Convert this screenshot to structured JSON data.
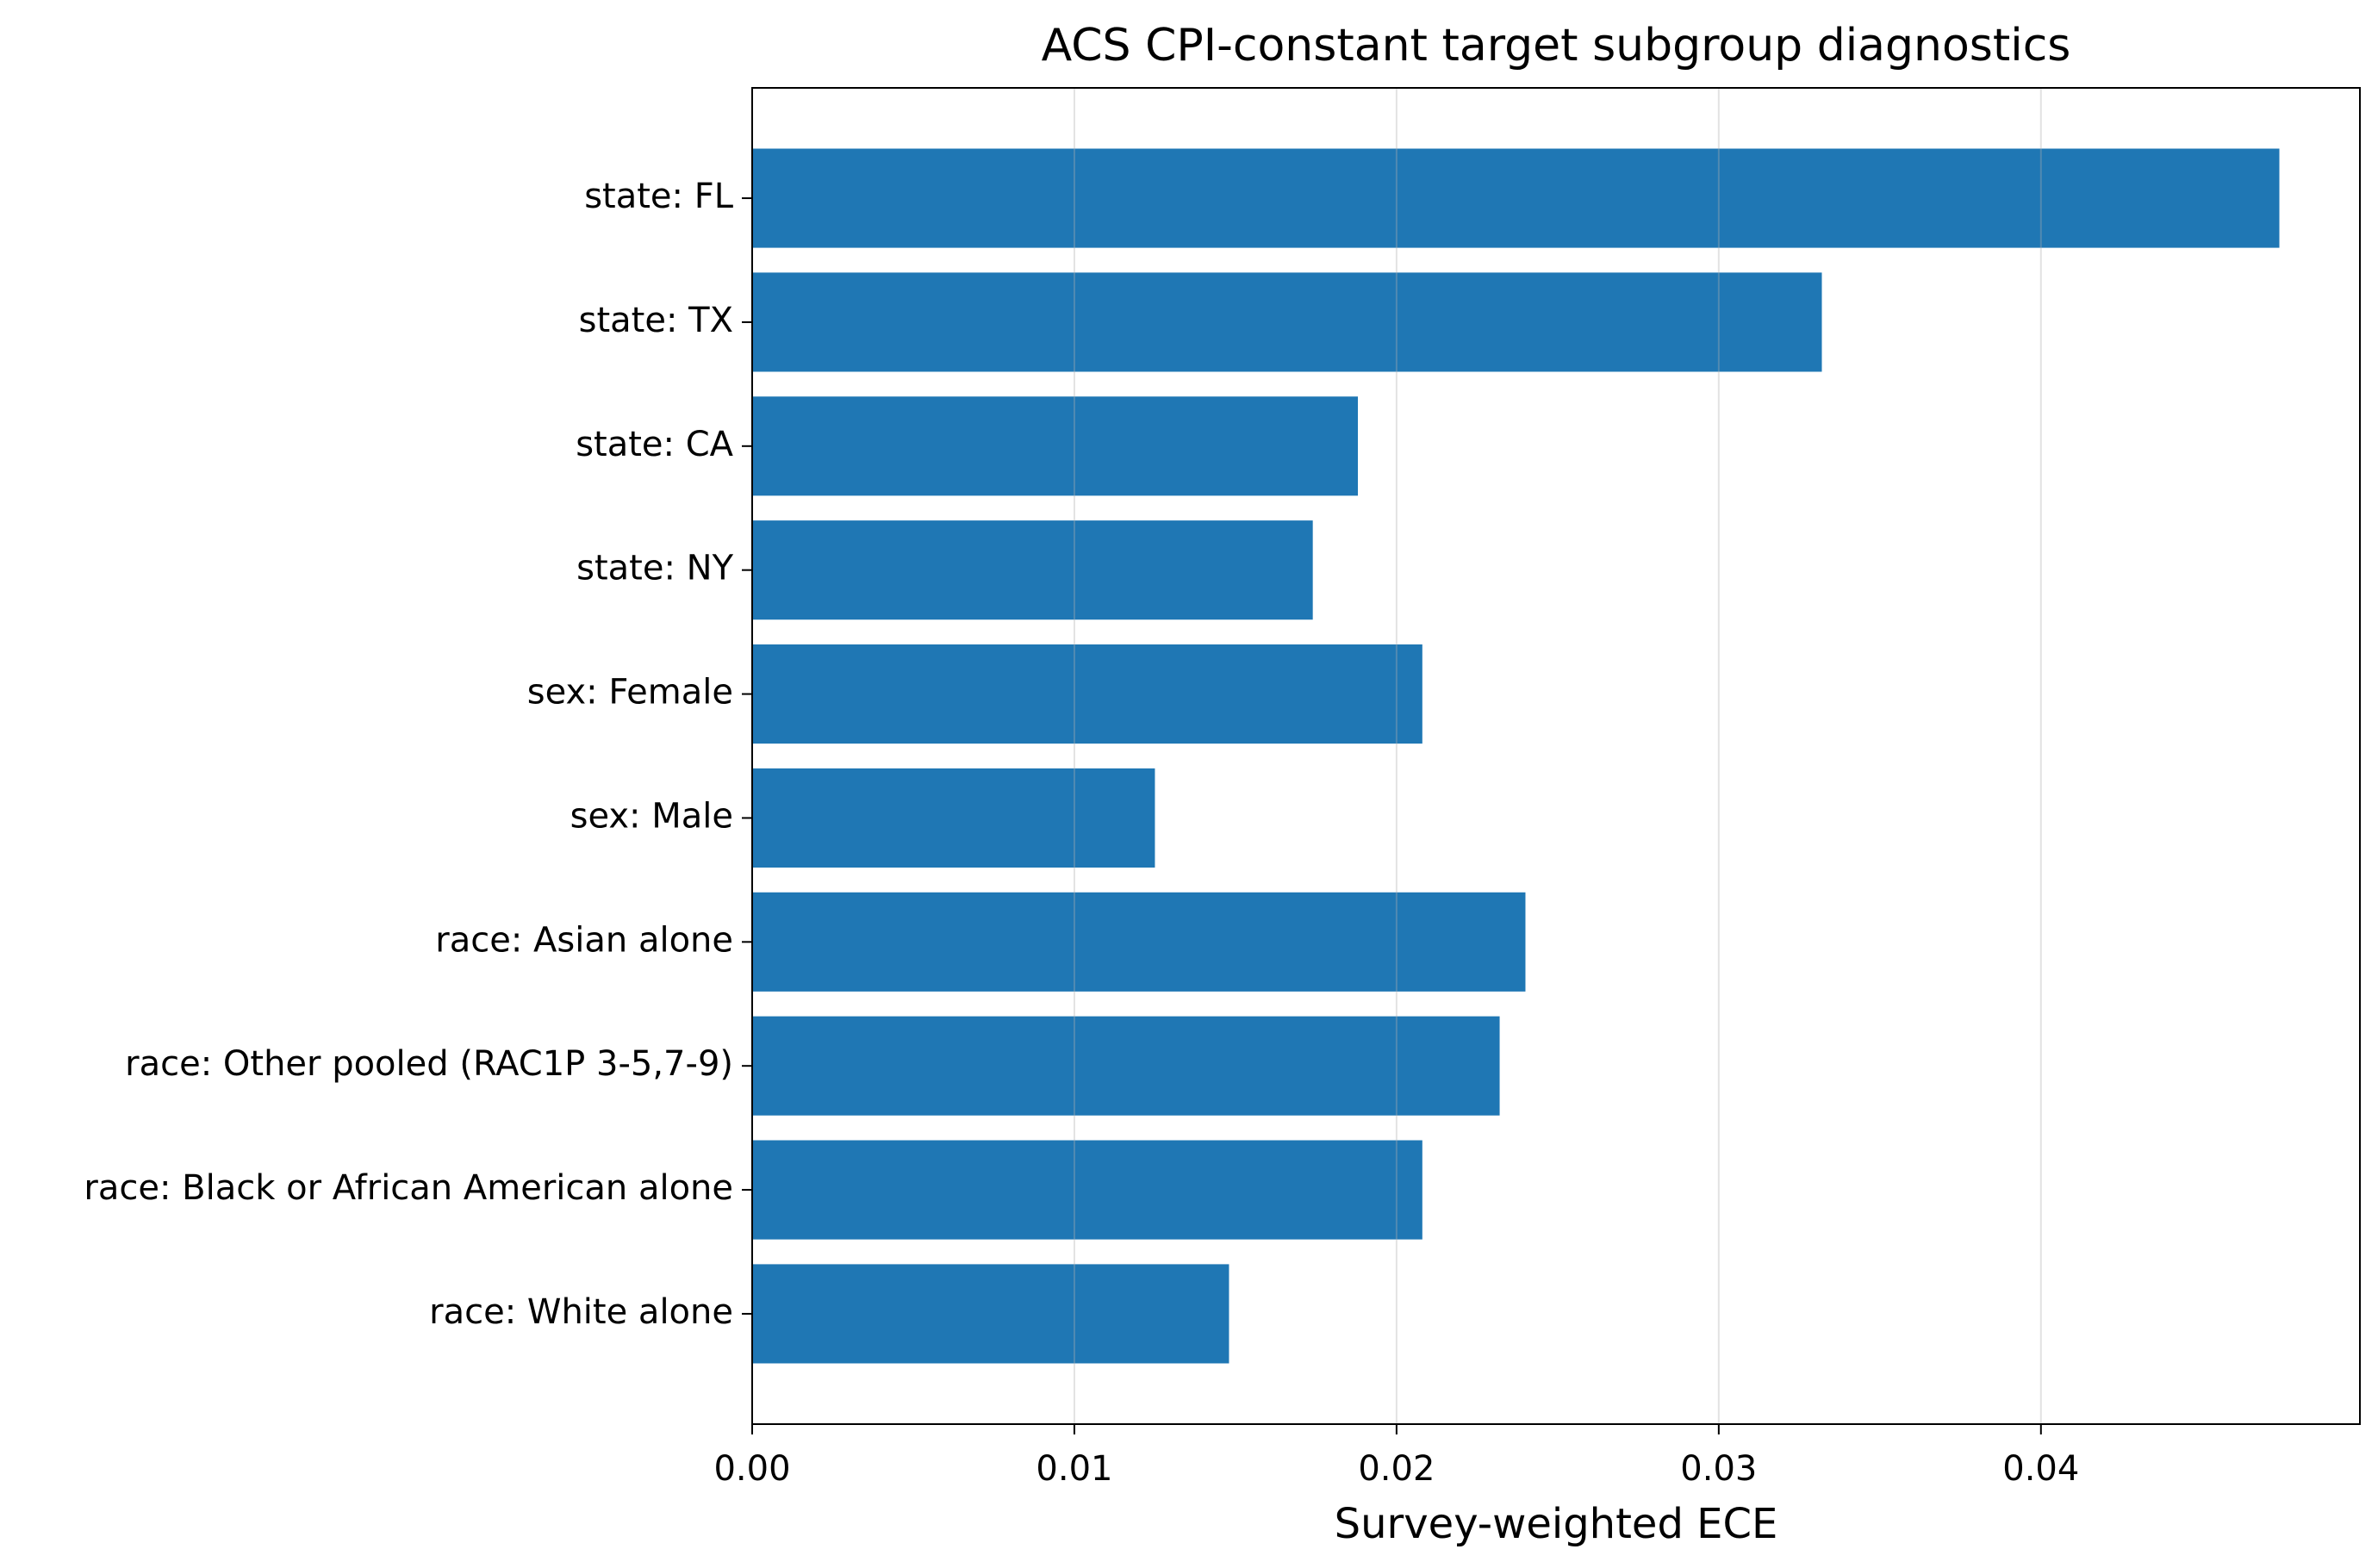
{
  "chart_data": {
    "type": "barh",
    "title": "ACS CPI-constant target subgroup diagnostics",
    "x_label": "Survey-weighted ECE",
    "categories": [
      "state: FL",
      "state: TX",
      "state: CA",
      "state: NY",
      "sex: Female",
      "sex: Male",
      "race: Asian alone",
      "race: Other pooled (RAC1P 3-5,7-9)",
      "race: Black or African American alone",
      "race: White alone"
    ],
    "values": [
      0.0474,
      0.0332,
      0.0188,
      0.0174,
      0.0208,
      0.0125,
      0.024,
      0.0232,
      0.0208,
      0.0148
    ],
    "color": "#1f77b4",
    "xlim": [
      0,
      0.0499
    ],
    "xticks": [
      {
        "value": 0,
        "label": "0.00"
      },
      {
        "value": 0.01,
        "label": "0.01"
      },
      {
        "value": 0.02,
        "label": "0.02"
      },
      {
        "value": 0.03,
        "label": "0.03"
      },
      {
        "value": 0.04,
        "label": "0.04"
      }
    ],
    "grid": true
  }
}
